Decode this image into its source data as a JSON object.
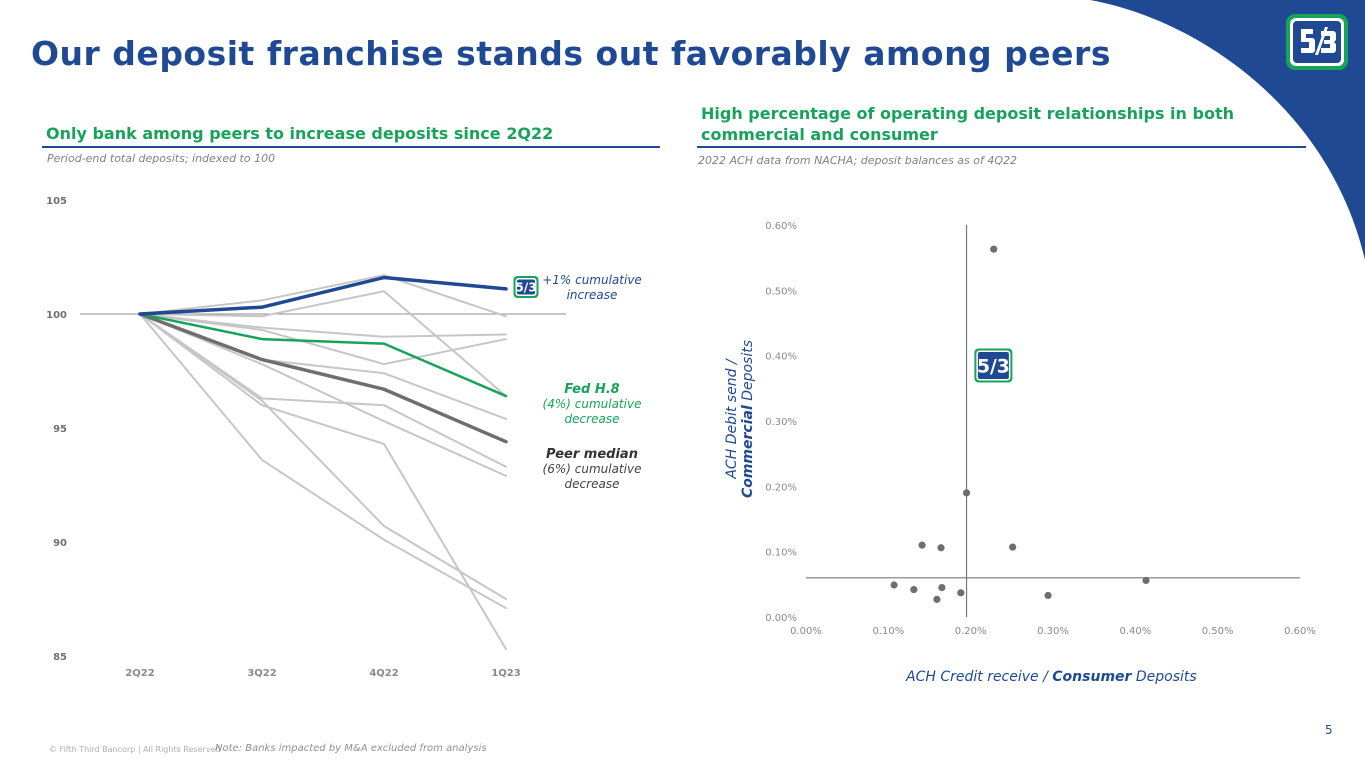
{
  "title": "Our deposit franchise stands out favorably among peers",
  "colors": {
    "brand_blue": "#1f4a93",
    "green": "#17a35a",
    "peer_gray": "#c4c4c4",
    "median_gray": "#6e6e6e"
  },
  "left_section": {
    "title": "Only bank among peers to increase deposits since 2Q22",
    "subtitle": "Period-end total deposits; indexed to 100",
    "annotations": {
      "fifth_third": "+1% cumulative increase",
      "fed_title": "Fed H.8",
      "fed_text": "(4%) cumulative decrease",
      "peer_title": "Peer median",
      "peer_text": "(6%) cumulative decrease"
    }
  },
  "right_section": {
    "title": "High percentage of operating deposit relationships in both commercial and consumer",
    "subtitle": "2022 ACH data from NACHA; deposit balances as of 4Q22",
    "x_axis_title_prefix": "ACH Credit receive / ",
    "x_axis_title_bold": "Consumer",
    "x_axis_title_suffix": " Deposits",
    "y_axis_title_line1": "ACH Debit send /",
    "y_axis_title_bold": "Commercial",
    "y_axis_title_suffix": " Deposits"
  },
  "chart_data": [
    {
      "type": "line",
      "categories": [
        "2Q22",
        "3Q22",
        "4Q22",
        "1Q23"
      ],
      "ylim": [
        85,
        105
      ],
      "yticks": [
        "85",
        "90",
        "95",
        "100",
        "105"
      ],
      "reference_line": 100,
      "series": [
        {
          "values": [
            100,
            100.6,
            101.7,
            99.9
          ],
          "style": "peer"
        },
        {
          "values": [
            100,
            99.9,
            101.0,
            96.4
          ],
          "style": "peer"
        },
        {
          "values": [
            100,
            99.4,
            99.0,
            99.1
          ],
          "style": "peer"
        },
        {
          "values": [
            100,
            99.3,
            97.8,
            98.9
          ],
          "style": "peer"
        },
        {
          "values": [
            100,
            98.0,
            97.4,
            95.4
          ],
          "style": "peer"
        },
        {
          "values": [
            100,
            97.8,
            95.3,
            92.9
          ],
          "style": "peer"
        },
        {
          "values": [
            100,
            96.3,
            96.0,
            93.3
          ],
          "style": "peer"
        },
        {
          "values": [
            100,
            96.0,
            94.3,
            85.3
          ],
          "style": "peer"
        },
        {
          "values": [
            100,
            96.2,
            90.7,
            87.5
          ],
          "style": "peer"
        },
        {
          "values": [
            100,
            93.6,
            90.1,
            87.1
          ],
          "style": "peer"
        },
        {
          "name": "Peer median",
          "values": [
            100,
            98.0,
            96.7,
            94.4
          ],
          "style": "median"
        },
        {
          "name": "Fed H.8",
          "values": [
            100,
            98.9,
            98.7,
            96.4
          ],
          "style": "fed"
        },
        {
          "values": [
            100,
            100.3,
            101.6,
            101.1
          ],
          "style": "fifth_third"
        }
      ]
    },
    {
      "type": "scatter",
      "xlim": [
        0,
        0.6
      ],
      "ylim": [
        0,
        0.6
      ],
      "xticks": [
        "0.00%",
        "0.10%",
        "0.20%",
        "0.30%",
        "0.40%",
        "0.50%",
        "0.60%"
      ],
      "yticks": [
        "0.00%",
        "0.10%",
        "0.20%",
        "0.30%",
        "0.40%",
        "0.50%",
        "0.60%"
      ],
      "crosshair": {
        "x": 0.195,
        "y": 0.06
      },
      "fifth_third_point": {
        "x": 0.227,
        "y": 0.385
      },
      "points": [
        {
          "x": 0.228,
          "y": 0.563
        },
        {
          "x": 0.195,
          "y": 0.19
        },
        {
          "x": 0.141,
          "y": 0.11
        },
        {
          "x": 0.164,
          "y": 0.106
        },
        {
          "x": 0.251,
          "y": 0.107
        },
        {
          "x": 0.107,
          "y": 0.049
        },
        {
          "x": 0.131,
          "y": 0.042
        },
        {
          "x": 0.165,
          "y": 0.045
        },
        {
          "x": 0.188,
          "y": 0.037
        },
        {
          "x": 0.159,
          "y": 0.027
        },
        {
          "x": 0.294,
          "y": 0.033
        },
        {
          "x": 0.413,
          "y": 0.056
        }
      ]
    }
  ],
  "footer": {
    "copyright": "© Fifth Third Bancorp | All Rights Reserved",
    "note": "Note: Banks impacted by M&A excluded from analysis",
    "page_number": "5"
  }
}
